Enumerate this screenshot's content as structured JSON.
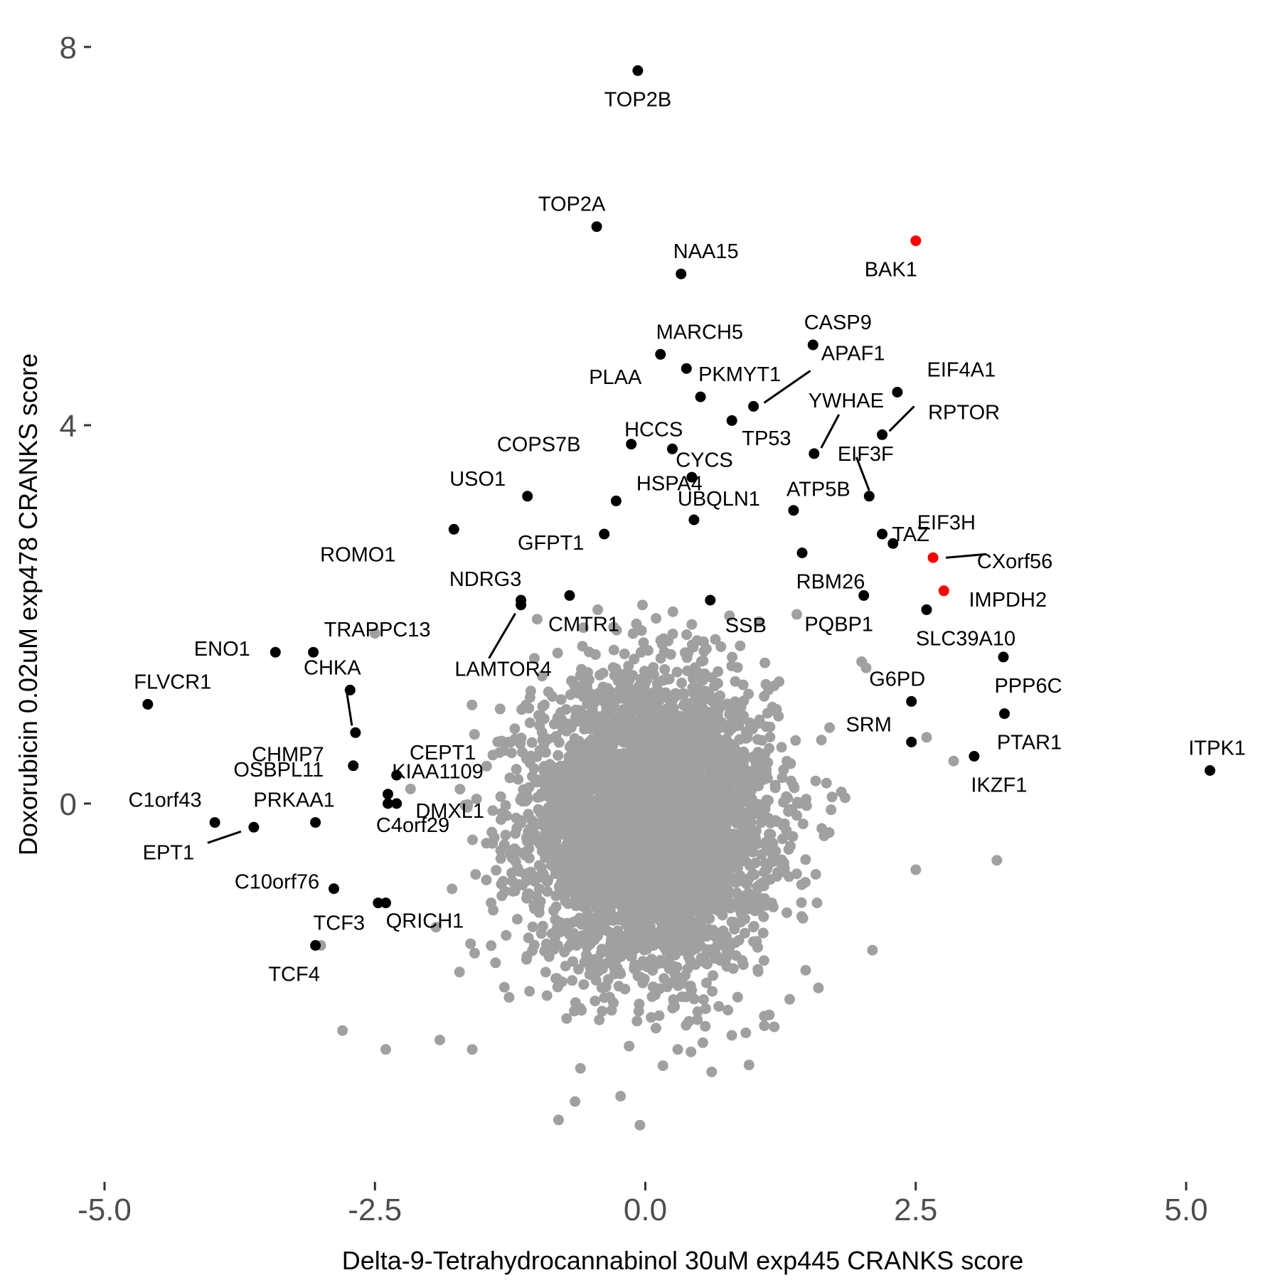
{
  "chart_data": {
    "type": "scatter",
    "title": "",
    "xlabel": "Delta-9-Tetrahydrocannabinol 30uM exp445 CRANKS score",
    "ylabel": "Doxorubicin 0.02uM exp478 CRANKS score",
    "xlim": [
      -5.0,
      5.0
    ],
    "ylim": [
      -4.0,
      8.0
    ],
    "x_ticks": [
      -5.0,
      -2.5,
      0.0,
      2.5,
      5.0
    ],
    "x_tick_labels": [
      "-5.0",
      "-2.5",
      "0.0",
      "2.5",
      "5.0"
    ],
    "y_ticks": [
      0,
      4,
      8
    ],
    "y_tick_labels": [
      "0",
      "4",
      "8"
    ],
    "grid": false,
    "legend": "none",
    "colors": {
      "background_points": "#a0a0a0",
      "labeled_points": "#000000",
      "highlight_points": "#ff0000",
      "tick_labels": "#4d4d4d"
    },
    "background_cloud": {
      "description_value": "approximately 18000 genes",
      "x_mean": 0.05,
      "x_sd": 0.55,
      "y_mean": -0.2,
      "y_sd": 0.75,
      "outliers": [
        [
          -2.8,
          -2.4
        ],
        [
          -2.4,
          -2.6
        ],
        [
          -1.9,
          -2.5
        ],
        [
          -1.6,
          -2.6
        ],
        [
          -0.6,
          -2.8
        ],
        [
          -0.65,
          -3.15
        ],
        [
          -0.05,
          -3.4
        ],
        [
          0.3,
          -2.6
        ],
        [
          1.1,
          -2.35
        ],
        [
          1.6,
          -1.95
        ],
        [
          2.1,
          -1.55
        ],
        [
          2.5,
          -0.7
        ],
        [
          2.6,
          0.7
        ],
        [
          2.85,
          0.45
        ],
        [
          3.25,
          -0.6
        ],
        [
          -3.0,
          -1.5
        ],
        [
          -2.5,
          1.8
        ],
        [
          2.0,
          1.5
        ],
        [
          1.4,
          2.0
        ],
        [
          -1.0,
          1.95
        ]
      ]
    },
    "labeled_points": [
      {
        "gene": "TOP2B",
        "x": -0.07,
        "y": 7.75,
        "color": "black"
      },
      {
        "gene": "TOP2A",
        "x": -0.45,
        "y": 6.1,
        "color": "black"
      },
      {
        "gene": "NAA15",
        "x": 0.33,
        "y": 5.6,
        "color": "black"
      },
      {
        "gene": "BAK1",
        "x": 2.5,
        "y": 5.95,
        "color": "red"
      },
      {
        "gene": "CASP9",
        "x": 1.55,
        "y": 4.85,
        "color": "black"
      },
      {
        "gene": "MARCH5",
        "x": 0.14,
        "y": 4.75,
        "color": "black"
      },
      {
        "gene": "PLAA",
        "x": 0.38,
        "y": 4.6,
        "color": "black"
      },
      {
        "gene": "PKMYT1",
        "x": 0.51,
        "y": 4.3,
        "color": "black"
      },
      {
        "gene": "APAF1",
        "x": 1.0,
        "y": 4.2,
        "color": "black"
      },
      {
        "gene": "EIF4A1",
        "x": 2.33,
        "y": 4.35,
        "color": "black"
      },
      {
        "gene": "HCCS",
        "x": 0.8,
        "y": 4.05,
        "color": "black"
      },
      {
        "gene": "YWHAE",
        "x": 1.56,
        "y": 3.7,
        "color": "black"
      },
      {
        "gene": "RPTOR",
        "x": 2.19,
        "y": 3.9,
        "color": "black"
      },
      {
        "gene": "COPS7B",
        "x": -0.13,
        "y": 3.8,
        "color": "black"
      },
      {
        "gene": "CYCS",
        "x": 0.25,
        "y": 3.75,
        "color": "black"
      },
      {
        "gene": "TP53",
        "x": 0.43,
        "y": 3.45,
        "color": "black"
      },
      {
        "gene": "EIF3F",
        "x": 2.07,
        "y": 3.25,
        "color": "black"
      },
      {
        "gene": "USO1",
        "x": -1.09,
        "y": 3.25,
        "color": "black"
      },
      {
        "gene": "HSPA4",
        "x": -0.27,
        "y": 3.2,
        "color": "black"
      },
      {
        "gene": "UBQLN1",
        "x": 0.45,
        "y": 3.0,
        "color": "black"
      },
      {
        "gene": "ATP5B",
        "x": 1.37,
        "y": 3.1,
        "color": "black"
      },
      {
        "gene": "TAZ",
        "x": 2.19,
        "y": 2.85,
        "color": "black"
      },
      {
        "gene": "ROMO1",
        "x": -1.77,
        "y": 2.9,
        "color": "black"
      },
      {
        "gene": "GFPT1",
        "x": -0.38,
        "y": 2.85,
        "color": "black"
      },
      {
        "gene": "EIF3H",
        "x": 2.29,
        "y": 2.75,
        "color": "black"
      },
      {
        "gene": "CXorf56",
        "x": 2.66,
        "y": 2.6,
        "color": "red"
      },
      {
        "gene": "RBM26",
        "x": 1.45,
        "y": 2.65,
        "color": "black"
      },
      {
        "gene": "NDRG3",
        "x": -1.15,
        "y": 2.15,
        "color": "black"
      },
      {
        "gene": "IMPDH2",
        "x": 2.76,
        "y": 2.25,
        "color": "red"
      },
      {
        "gene": "CMTR1",
        "x": -0.7,
        "y": 2.2,
        "color": "black"
      },
      {
        "gene": "SSB",
        "x": 0.6,
        "y": 2.15,
        "color": "black"
      },
      {
        "gene": "PQBP1",
        "x": 2.02,
        "y": 2.2,
        "color": "black"
      },
      {
        "gene": "SLC39A10",
        "x": 2.6,
        "y": 2.05,
        "color": "black"
      },
      {
        "gene": "LAMTOR4",
        "x": -1.15,
        "y": 2.1,
        "color": "black"
      },
      {
        "gene": "TRAPPC13",
        "x": -3.07,
        "y": 1.6,
        "color": "black"
      },
      {
        "gene": "ENO1",
        "x": -3.42,
        "y": 1.6,
        "color": "black"
      },
      {
        "gene": "PPP6C",
        "x": 3.31,
        "y": 1.55,
        "color": "black"
      },
      {
        "gene": "CHKA",
        "x": -2.73,
        "y": 1.2,
        "color": "black"
      },
      {
        "gene": "FLVCR1",
        "x": -4.6,
        "y": 1.05,
        "color": "black"
      },
      {
        "gene": "G6PD",
        "x": 2.46,
        "y": 1.08,
        "color": "black"
      },
      {
        "gene": "CHMP7",
        "x": -2.68,
        "y": 0.75,
        "color": "black"
      },
      {
        "gene": "PTAR1",
        "x": 3.32,
        "y": 0.95,
        "color": "black"
      },
      {
        "gene": "CEPT1",
        "x": -2.3,
        "y": 0.3,
        "color": "black"
      },
      {
        "gene": "SRM",
        "x": 2.46,
        "y": 0.65,
        "color": "black"
      },
      {
        "gene": "KIAA1109",
        "x": -2.38,
        "y": 0.1,
        "color": "black"
      },
      {
        "gene": "OSBPL11",
        "x": -2.7,
        "y": 0.4,
        "color": "black"
      },
      {
        "gene": "IKZF1",
        "x": 3.04,
        "y": 0.5,
        "color": "black"
      },
      {
        "gene": "ITPK1",
        "x": 5.22,
        "y": 0.35,
        "color": "black"
      },
      {
        "gene": "DMXL1",
        "x": -2.3,
        "y": 0.0,
        "color": "black"
      },
      {
        "gene": "C1orf43",
        "x": -3.98,
        "y": -0.2,
        "color": "black"
      },
      {
        "gene": "PRKAA1",
        "x": -3.05,
        "y": -0.2,
        "color": "black"
      },
      {
        "gene": "EPT1",
        "x": -3.62,
        "y": -0.25,
        "color": "black"
      },
      {
        "gene": "C4orf29",
        "x": -2.38,
        "y": 0.0,
        "color": "black"
      },
      {
        "gene": "C10orf76",
        "x": -2.88,
        "y": -0.9,
        "color": "black"
      },
      {
        "gene": "TCF3",
        "x": -2.47,
        "y": -1.05,
        "color": "black"
      },
      {
        "gene": "QRICH1",
        "x": -2.4,
        "y": -1.05,
        "color": "black"
      },
      {
        "gene": "TCF4",
        "x": -3.05,
        "y": -1.5,
        "color": "black"
      }
    ]
  }
}
